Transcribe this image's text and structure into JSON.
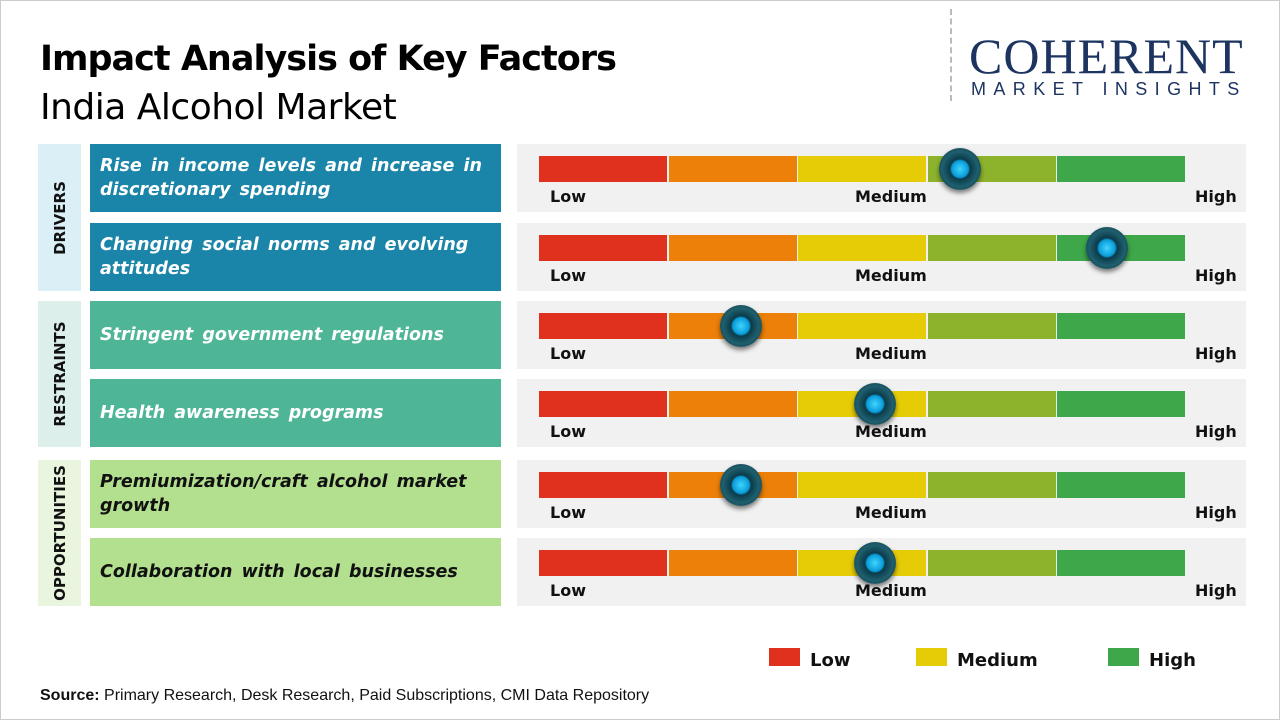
{
  "title": "Impact Analysis of Key Factors",
  "subtitle": "India Alcohol Market",
  "logo": {
    "line1": "COHERENT",
    "line2": "MARKET INSIGHTS"
  },
  "source_label": "Source:",
  "source_text": " Primary Research, Desk Research, Paid Subscriptions, CMI Data Repository",
  "colors": {
    "low": "#e0301e",
    "low_medium": "#ec8008",
    "medium": "#e6cc07",
    "medium_high": "#8db32c",
    "high": "#3ea74a",
    "drivers": "#1a85a8",
    "restraints": "#4fb597",
    "opportunities": "#b3e08f"
  },
  "chart_data": {
    "type": "gauge",
    "scale_labels": [
      "Low",
      "Medium",
      "High"
    ],
    "scale_range": [
      0,
      1
    ],
    "legend": [
      {
        "label": "Low",
        "color": "#e0301e"
      },
      {
        "label": "Medium",
        "color": "#e6cc07"
      },
      {
        "label": "High",
        "color": "#3ea74a"
      }
    ],
    "groups": [
      {
        "name": "DRIVERS",
        "bg": "#dbeff7",
        "row_color": "#1a85a8",
        "text_color": "#ffffff",
        "factors": [
          {
            "label": "Rise in income levels and increase in discretionary spending",
            "impact": 0.65
          },
          {
            "label": "Changing social norms and evolving attitudes",
            "impact": 0.877
          }
        ]
      },
      {
        "name": "RESTRAINTS",
        "bg": "#dcefea",
        "row_color": "#4fb597",
        "text_color": "#ffffff",
        "factors": [
          {
            "label": "Stringent government regulations",
            "impact": 0.312
          },
          {
            "label": "Health awareness programs",
            "impact": 0.519
          }
        ]
      },
      {
        "name": "OPPORTUNITIES",
        "bg": "#e9f5de",
        "row_color": "#b3e08f",
        "text_color": "#111111",
        "factors": [
          {
            "label": "Premiumization/craft alcohol market growth",
            "impact": 0.312
          },
          {
            "label": "Collaboration with local businesses",
            "impact": 0.519
          }
        ]
      }
    ]
  }
}
